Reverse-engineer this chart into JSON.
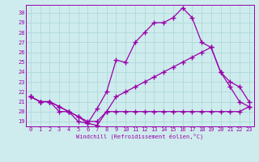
{
  "xlabel": "Windchill (Refroidissement éolien,°C)",
  "xlim": [
    -0.5,
    23.5
  ],
  "ylim": [
    18.5,
    30.8
  ],
  "yticks": [
    19,
    20,
    21,
    22,
    23,
    24,
    25,
    26,
    27,
    28,
    29,
    30
  ],
  "xticks": [
    0,
    1,
    2,
    3,
    4,
    5,
    6,
    7,
    8,
    9,
    10,
    11,
    12,
    13,
    14,
    15,
    16,
    17,
    18,
    19,
    20,
    21,
    22,
    23
  ],
  "bg_color": "#ceeced",
  "line_color": "#9900aa",
  "grid_color": "#b0d8da",
  "line1_x": [
    0,
    1,
    2,
    3,
    4,
    5,
    6,
    7,
    8,
    9,
    10,
    11,
    12,
    13,
    14,
    15,
    16,
    17,
    18,
    19,
    20,
    21,
    22,
    23
  ],
  "line1_y": [
    21.5,
    21.0,
    21.0,
    20.0,
    20.0,
    19.5,
    18.8,
    18.6,
    20.0,
    20.0,
    20.0,
    20.0,
    20.0,
    20.0,
    20.0,
    20.0,
    20.0,
    20.0,
    20.0,
    20.0,
    20.0,
    20.0,
    20.0,
    20.5
  ],
  "line2_x": [
    0,
    1,
    2,
    3,
    4,
    5,
    6,
    7,
    8,
    9,
    10,
    11,
    12,
    13,
    14,
    15,
    16,
    17,
    18,
    19,
    20,
    21,
    22,
    23
  ],
  "line2_y": [
    21.5,
    21.0,
    21.0,
    20.5,
    20.0,
    19.0,
    18.8,
    20.3,
    22.0,
    25.2,
    25.0,
    27.0,
    28.0,
    29.0,
    29.0,
    29.5,
    30.5,
    29.5,
    27.0,
    26.5,
    24.0,
    22.5,
    21.0,
    20.5
  ],
  "line3_x": [
    0,
    1,
    2,
    3,
    4,
    5,
    6,
    7,
    8,
    9,
    10,
    11,
    12,
    13,
    14,
    15,
    16,
    17,
    18,
    19,
    20,
    21,
    22,
    23
  ],
  "line3_y": [
    21.5,
    21.0,
    21.0,
    20.5,
    20.0,
    19.5,
    19.0,
    19.0,
    20.0,
    21.5,
    22.0,
    22.5,
    23.0,
    23.5,
    24.0,
    24.5,
    25.0,
    25.5,
    26.0,
    26.5,
    24.0,
    23.0,
    22.5,
    21.0
  ]
}
